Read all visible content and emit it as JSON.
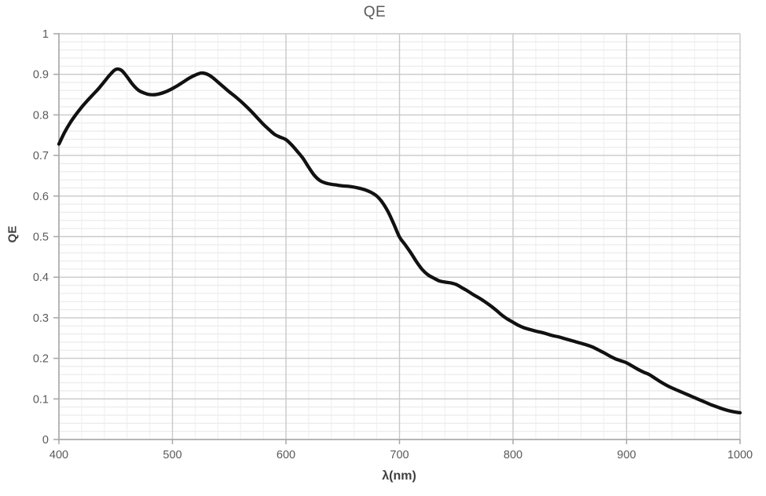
{
  "chart_title": "QE",
  "chart_data": {
    "type": "line",
    "title": "QE",
    "xlabel": "λ(nm)",
    "ylabel": "QE",
    "xlim": [
      400,
      1000
    ],
    "ylim": [
      0,
      1
    ],
    "x_major_ticks": [
      400,
      500,
      600,
      700,
      800,
      900,
      1000
    ],
    "y_major_ticks": [
      0,
      0.1,
      0.2,
      0.3,
      0.4,
      0.5,
      0.6,
      0.7,
      0.8,
      0.9,
      1
    ],
    "x_minor_step": 20,
    "y_minor_step": 0.02,
    "grid": "major+minor",
    "legend_position": "none",
    "colors": {
      "curve": "#111111",
      "major_grid": "#c9c9c9",
      "minor_grid_h": "#ececec",
      "minor_grid_v": "#f2f2f2",
      "axis_line": "#a6a6a6",
      "title_text": "#595959",
      "tick_label": "#595959",
      "axis_title_text": "#3f3f3f"
    },
    "series": [
      {
        "name": "QE",
        "x": [
          400,
          405,
          410,
          415,
          420,
          425,
          430,
          435,
          440,
          445,
          450,
          455,
          460,
          465,
          470,
          475,
          480,
          485,
          490,
          495,
          500,
          505,
          510,
          515,
          520,
          525,
          530,
          535,
          540,
          545,
          550,
          555,
          560,
          565,
          570,
          575,
          580,
          585,
          590,
          595,
          600,
          605,
          610,
          615,
          620,
          625,
          630,
          635,
          640,
          645,
          650,
          655,
          660,
          665,
          670,
          675,
          680,
          685,
          690,
          695,
          700,
          705,
          710,
          715,
          720,
          725,
          730,
          735,
          740,
          745,
          750,
          755,
          760,
          765,
          770,
          775,
          780,
          785,
          790,
          795,
          800,
          805,
          810,
          815,
          820,
          825,
          830,
          835,
          840,
          845,
          850,
          855,
          860,
          865,
          870,
          875,
          880,
          885,
          890,
          895,
          900,
          905,
          910,
          915,
          920,
          925,
          930,
          935,
          940,
          945,
          950,
          955,
          960,
          965,
          970,
          975,
          980,
          985,
          990,
          995,
          1000
        ],
        "y": [
          0.728,
          0.757,
          0.781,
          0.801,
          0.819,
          0.835,
          0.85,
          0.865,
          0.882,
          0.899,
          0.912,
          0.91,
          0.894,
          0.875,
          0.861,
          0.854,
          0.85,
          0.85,
          0.853,
          0.858,
          0.865,
          0.873,
          0.882,
          0.891,
          0.898,
          0.903,
          0.901,
          0.893,
          0.881,
          0.869,
          0.857,
          0.846,
          0.834,
          0.821,
          0.807,
          0.792,
          0.777,
          0.764,
          0.752,
          0.745,
          0.739,
          0.726,
          0.71,
          0.693,
          0.671,
          0.651,
          0.638,
          0.632,
          0.629,
          0.627,
          0.625,
          0.624,
          0.622,
          0.619,
          0.615,
          0.609,
          0.6,
          0.584,
          0.561,
          0.531,
          0.499,
          0.48,
          0.46,
          0.438,
          0.419,
          0.406,
          0.398,
          0.391,
          0.388,
          0.386,
          0.382,
          0.374,
          0.366,
          0.357,
          0.349,
          0.34,
          0.33,
          0.319,
          0.307,
          0.297,
          0.289,
          0.281,
          0.275,
          0.271,
          0.267,
          0.264,
          0.26,
          0.256,
          0.253,
          0.249,
          0.245,
          0.241,
          0.237,
          0.233,
          0.228,
          0.221,
          0.214,
          0.206,
          0.199,
          0.194,
          0.189,
          0.181,
          0.173,
          0.166,
          0.16,
          0.151,
          0.142,
          0.134,
          0.127,
          0.121,
          0.115,
          0.109,
          0.103,
          0.097,
          0.091,
          0.085,
          0.08,
          0.075,
          0.071,
          0.068,
          0.066
        ]
      }
    ]
  }
}
